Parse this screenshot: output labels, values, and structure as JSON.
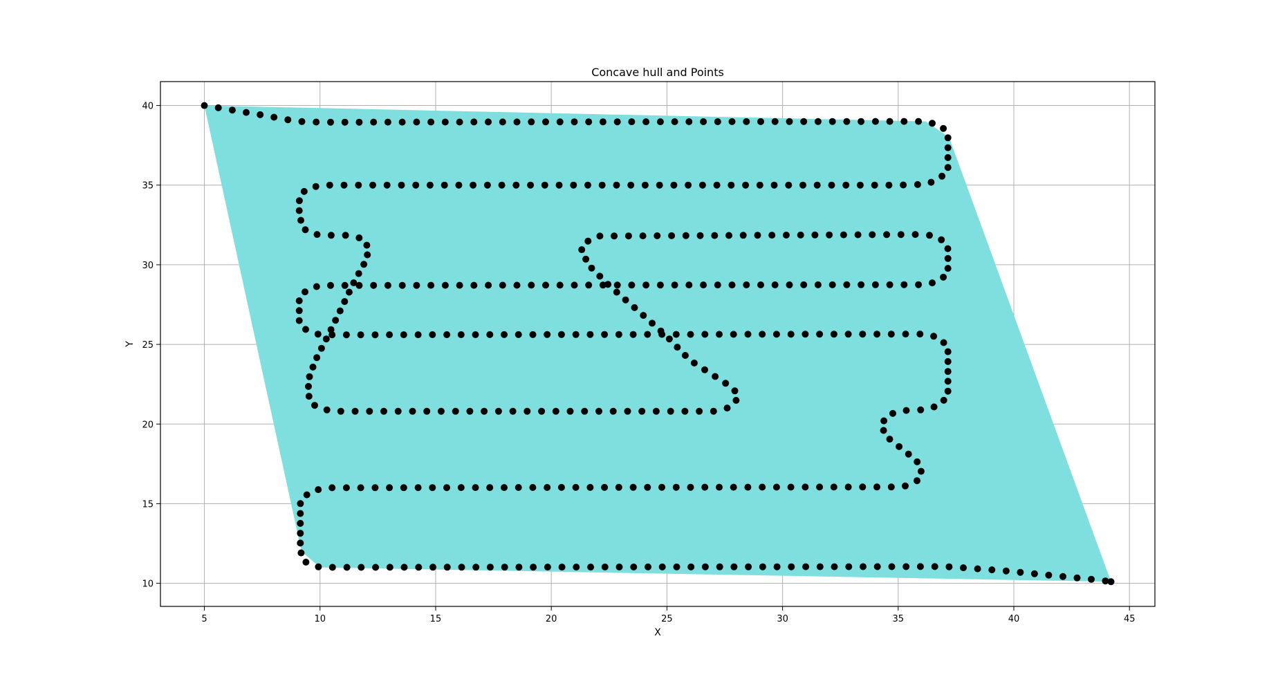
{
  "chart_data": {
    "type": "scatter",
    "title": "Concave hull and Points",
    "xlabel": "X",
    "ylabel": "Y",
    "xlim": [
      3.1,
      46.1
    ],
    "ylim": [
      8.55,
      41.5
    ],
    "xticks": [
      5,
      10,
      15,
      20,
      25,
      30,
      35,
      40,
      45
    ],
    "yticks": [
      10,
      15,
      20,
      25,
      30,
      35,
      40
    ],
    "grid": true,
    "legend": "none",
    "colors": {
      "hull": "#7fdfdf",
      "points": "#000000",
      "grid": "#b0b0b0"
    },
    "hull": [
      [
        5.0,
        40.0
      ],
      [
        36.2,
        39.0
      ],
      [
        37.2,
        38.0
      ],
      [
        44.2,
        10.1
      ],
      [
        10.0,
        11.0
      ],
      [
        9.2,
        12.0
      ],
      [
        5.0,
        40.0
      ]
    ],
    "point_paths": [
      [
        [
          5.0,
          40.0
        ],
        [
          7.5,
          39.4
        ],
        [
          9.0,
          39.0
        ],
        [
          10.0,
          38.95
        ],
        [
          35.3,
          39.0
        ],
        [
          36.2,
          39.0
        ],
        [
          36.9,
          38.7
        ],
        [
          37.15,
          38.0
        ],
        [
          37.15,
          36.0
        ],
        [
          36.8,
          35.4
        ],
        [
          36.2,
          35.05
        ],
        [
          35.0,
          35.0
        ],
        [
          10.0,
          35.0
        ],
        [
          9.35,
          34.7
        ],
        [
          9.1,
          34.0
        ],
        [
          9.1,
          33.0
        ],
        [
          9.4,
          32.1
        ],
        [
          10.0,
          31.85
        ],
        [
          11.3,
          31.85
        ],
        [
          11.9,
          31.6
        ],
        [
          12.1,
          31.0
        ],
        [
          12.0,
          30.3
        ],
        [
          11.5,
          29.0
        ],
        [
          11.0,
          27.5
        ],
        [
          10.5,
          26.0
        ],
        [
          9.8,
          24.0
        ],
        [
          9.5,
          22.8
        ],
        [
          9.5,
          21.8
        ],
        [
          9.8,
          21.1
        ],
        [
          10.5,
          20.8
        ],
        [
          27.0,
          20.8
        ],
        [
          27.6,
          21.0
        ],
        [
          28.0,
          21.5
        ],
        [
          28.0,
          22.0
        ],
        [
          27.6,
          22.5
        ],
        [
          26.0,
          24.0
        ],
        [
          25.0,
          25.5
        ],
        [
          24.0,
          26.8
        ],
        [
          22.5,
          28.7
        ],
        [
          21.6,
          30.0
        ],
        [
          21.3,
          31.0
        ],
        [
          21.6,
          31.5
        ],
        [
          22.0,
          31.8
        ],
        [
          35.3,
          31.9
        ],
        [
          36.2,
          31.9
        ],
        [
          36.8,
          31.7
        ],
        [
          37.15,
          31.0
        ],
        [
          37.15,
          29.5
        ],
        [
          36.8,
          29.0
        ],
        [
          36.2,
          28.75
        ],
        [
          10.0,
          28.7
        ],
        [
          9.4,
          28.4
        ],
        [
          9.1,
          27.8
        ],
        [
          9.1,
          26.5
        ],
        [
          9.4,
          25.9
        ],
        [
          10.0,
          25.6
        ],
        [
          36.2,
          25.65
        ],
        [
          36.8,
          25.4
        ],
        [
          37.15,
          24.8
        ],
        [
          37.15,
          21.8
        ],
        [
          36.8,
          21.2
        ],
        [
          36.2,
          20.9
        ],
        [
          35.3,
          20.85
        ],
        [
          34.8,
          20.7
        ],
        [
          34.4,
          20.3
        ],
        [
          34.3,
          19.8
        ],
        [
          34.5,
          19.2
        ],
        [
          35.2,
          18.4
        ],
        [
          35.8,
          17.7
        ],
        [
          36.0,
          17.0
        ],
        [
          35.8,
          16.4
        ],
        [
          35.2,
          16.05
        ],
        [
          11.0,
          16.0
        ],
        [
          10.2,
          16.0
        ],
        [
          9.5,
          15.7
        ],
        [
          9.15,
          15.0
        ],
        [
          9.15,
          12.0
        ],
        [
          9.4,
          11.3
        ],
        [
          10.0,
          11.0
        ],
        [
          36.2,
          11.05
        ],
        [
          37.1,
          11.05
        ],
        [
          39.5,
          10.8
        ],
        [
          43.7,
          10.2
        ],
        [
          44.2,
          10.1
        ]
      ]
    ]
  }
}
